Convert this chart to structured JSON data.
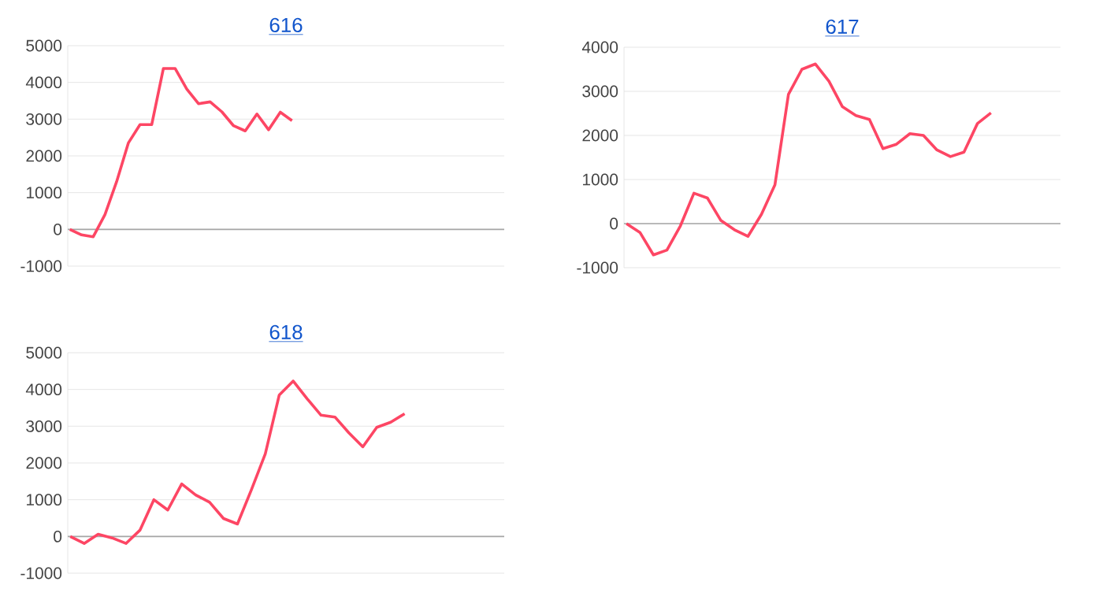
{
  "chart_data": [
    {
      "type": "line",
      "title": "616",
      "categories": [
        null,
        null,
        null,
        null,
        null,
        null,
        null,
        null,
        null,
        null,
        null,
        null,
        null,
        null,
        null,
        null,
        null,
        null,
        null,
        null,
        null,
        null,
        null,
        null,
        null,
        null,
        null,
        null,
        null,
        null,
        null,
        null,
        null,
        null,
        null,
        null,
        null,
        null
      ],
      "series": [
        {
          "color": "#fd4664",
          "values": [
            0,
            -150,
            -200,
            400,
            1300,
            2350,
            2850,
            2850,
            4380,
            4380,
            3820,
            3420,
            3470,
            3200,
            2820,
            2680,
            3140,
            2710,
            3190,
            2960,
            null,
            null,
            null,
            null,
            null,
            null,
            null,
            null,
            null,
            null,
            null,
            null,
            null,
            null,
            null,
            null,
            null,
            null
          ]
        }
      ],
      "ylim": [
        -1000,
        5000
      ],
      "yticks": [
        -1000,
        0,
        1000,
        2000,
        3000,
        4000,
        5000
      ],
      "grid": "y"
    },
    {
      "type": "line",
      "title": "617",
      "categories": [
        null,
        null,
        null,
        null,
        null,
        null,
        null,
        null,
        null,
        null,
        null,
        null,
        null,
        null,
        null,
        null,
        null,
        null,
        null,
        null,
        null,
        null,
        null,
        null,
        null,
        null,
        null,
        null,
        null,
        null,
        null,
        null,
        null
      ],
      "series": [
        {
          "color": "#fd4664",
          "values": [
            0,
            -200,
            -710,
            -600,
            -50,
            690,
            580,
            70,
            -140,
            -290,
            210,
            880,
            2930,
            3500,
            3620,
            3230,
            2650,
            2450,
            2360,
            1700,
            1800,
            2040,
            2000,
            1670,
            1520,
            1620,
            2270,
            2510,
            null,
            null,
            null,
            null,
            null
          ]
        }
      ],
      "ylim": [
        -1000,
        4000
      ],
      "yticks": [
        -1000,
        0,
        1000,
        2000,
        3000,
        4000
      ],
      "grid": "y"
    },
    {
      "type": "line",
      "title": "618",
      "categories": [
        null,
        null,
        null,
        null,
        null,
        null,
        null,
        null,
        null,
        null,
        null,
        null,
        null,
        null,
        null,
        null,
        null,
        null,
        null,
        null,
        null,
        null,
        null,
        null,
        null,
        null,
        null,
        null,
        null,
        null,
        null,
        null
      ],
      "series": [
        {
          "color": "#fd4664",
          "values": [
            0,
            -190,
            60,
            -40,
            -190,
            170,
            1000,
            720,
            1430,
            1130,
            930,
            490,
            340,
            1270,
            2250,
            3850,
            4230,
            3750,
            3300,
            3250,
            2820,
            2440,
            2970,
            3110,
            3340,
            null,
            null,
            null,
            null,
            null,
            null,
            null
          ]
        }
      ],
      "ylim": [
        -1000,
        5000
      ],
      "yticks": [
        -1000,
        0,
        1000,
        2000,
        3000,
        4000,
        5000
      ],
      "grid": "y"
    }
  ]
}
